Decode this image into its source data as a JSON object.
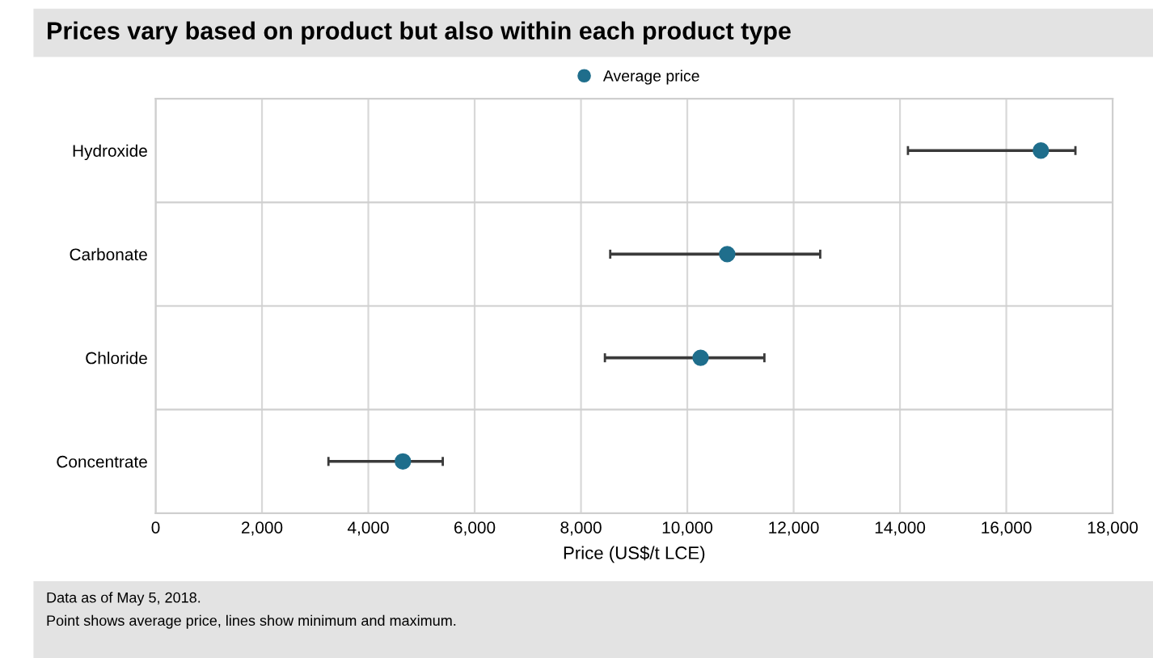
{
  "chart_data": {
    "type": "scatter",
    "title": "Prices vary based on product but also within each product type",
    "xlabel": "Price (US$/t LCE)",
    "categories": [
      "Hydroxide",
      "Carbonate",
      "Chloride",
      "Concentrate"
    ],
    "orientation": "horizontal",
    "series": [
      {
        "name": "Average price",
        "color": "#1f6e8c",
        "values": [
          16650,
          10750,
          10250,
          4650
        ],
        "errors": [
          [
            14150,
            17300
          ],
          [
            8550,
            12500
          ],
          [
            8450,
            11450
          ],
          [
            3250,
            5400
          ]
        ]
      }
    ],
    "xlim": [
      0,
      18000
    ],
    "xticks": [
      {
        "value": 0,
        "label": "0"
      },
      {
        "value": 2000,
        "label": "2,000"
      },
      {
        "value": 4000,
        "label": "4,000"
      },
      {
        "value": 6000,
        "label": "6,000"
      },
      {
        "value": 8000,
        "label": "8,000"
      },
      {
        "value": 10000,
        "label": "10,000"
      },
      {
        "value": 12000,
        "label": "12,000"
      },
      {
        "value": 14000,
        "label": "14,000"
      },
      {
        "value": 16000,
        "label": "16,000"
      },
      {
        "value": 18000,
        "label": "18,000"
      }
    ],
    "grid": true,
    "legend": "top",
    "marker": "circle",
    "annotations": [
      "Data as of May 5, 2018.",
      "Point shows average price, lines show minimum and maximum."
    ]
  }
}
